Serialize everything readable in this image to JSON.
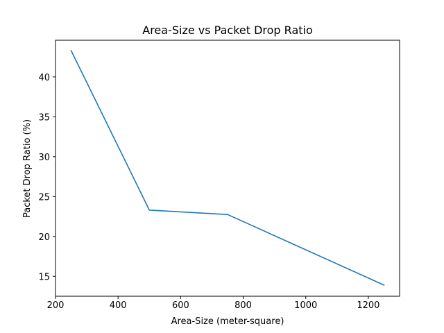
{
  "chart_data": {
    "type": "line",
    "title": "Area-Size vs Packet Drop Ratio",
    "xlabel": "Area-Size (meter-square)",
    "ylabel": "Packet Drop Ratio (%)",
    "xlim": [
      200,
      1300
    ],
    "ylim": [
      12.5,
      44.6
    ],
    "xticks": [
      200,
      400,
      600,
      800,
      1000,
      1200
    ],
    "yticks": [
      15,
      20,
      25,
      30,
      35,
      40
    ],
    "grid": false,
    "series": [
      {
        "color": "#1f77b4",
        "x": [
          250,
          500,
          750,
          1250
        ],
        "y": [
          43.3,
          23.3,
          22.75,
          13.9
        ]
      }
    ]
  }
}
